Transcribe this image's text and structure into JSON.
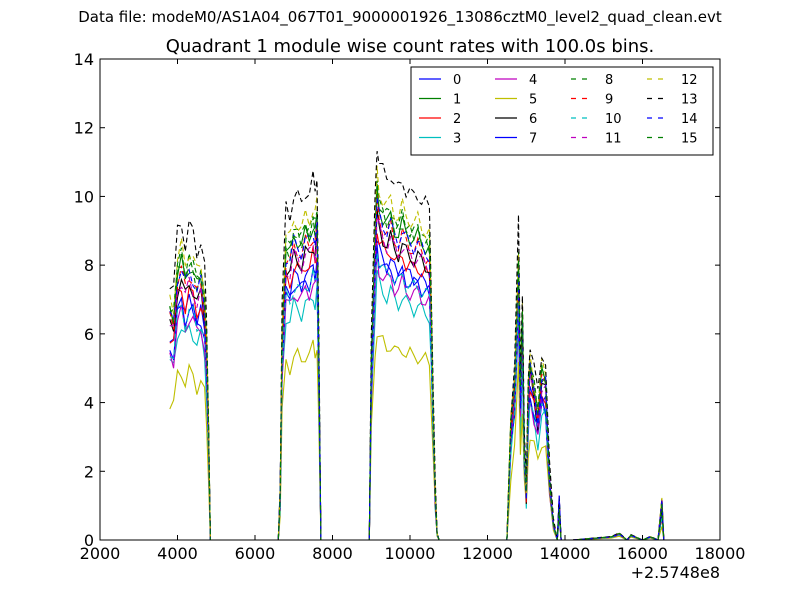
{
  "suptitle": "Data file: modeM0/AS1A04_067T01_9000001926_13086cztM0_level2_quad_clean.evt",
  "chart_data": {
    "type": "line",
    "title": "Quadrant 1 module wise count rates with 100.0s bins.",
    "xlabel": "",
    "ylabel": "",
    "xlim": [
      2000,
      18000
    ],
    "ylim": [
      0,
      14
    ],
    "x_offset_label": "+2.5748e8",
    "xticks": [
      "2000",
      "4000",
      "6000",
      "8000",
      "10000",
      "12000",
      "14000",
      "16000",
      "18000"
    ],
    "yticks": [
      "0",
      "2",
      "4",
      "6",
      "8",
      "10",
      "12",
      "14"
    ],
    "grid": false,
    "legend_position": "top-right",
    "legend_columns": 4,
    "series": [
      {
        "name": "0",
        "color": "#0000ff",
        "dash": "solid",
        "level": 8.0
      },
      {
        "name": "1",
        "color": "#008000",
        "dash": "solid",
        "level": 9.2
      },
      {
        "name": "2",
        "color": "#ff0000",
        "dash": "solid",
        "level": 8.3
      },
      {
        "name": "3",
        "color": "#00bfbf",
        "dash": "solid",
        "level": 7.1
      },
      {
        "name": "4",
        "color": "#bf00bf",
        "dash": "solid",
        "level": 7.5
      },
      {
        "name": "5",
        "color": "#bfbf00",
        "dash": "solid",
        "level": 5.6
      },
      {
        "name": "6",
        "color": "#000000",
        "dash": "solid",
        "level": 8.6
      },
      {
        "name": "7",
        "color": "#0000ff",
        "dash": "solid",
        "level": 7.8
      },
      {
        "name": "8",
        "color": "#008000",
        "dash": "dashed",
        "level": 9.3
      },
      {
        "name": "9",
        "color": "#ff0000",
        "dash": "dashed",
        "level": 8.9
      },
      {
        "name": "10",
        "color": "#00bfbf",
        "dash": "dashed",
        "level": 7.7
      },
      {
        "name": "11",
        "color": "#bf00bf",
        "dash": "dashed",
        "level": 8.6
      },
      {
        "name": "12",
        "color": "#bfbf00",
        "dash": "dashed",
        "level": 9.7
      },
      {
        "name": "13",
        "color": "#000000",
        "dash": "dashed",
        "level": 10.5
      },
      {
        "name": "14",
        "color": "#0000ff",
        "dash": "dashed",
        "level": 9.0
      },
      {
        "name": "15",
        "color": "#008000",
        "dash": "dashed",
        "level": 9.4
      }
    ],
    "profile_x": [
      3800,
      3900,
      4000,
      4100,
      4200,
      4300,
      4400,
      4500,
      4600,
      4700,
      4750,
      4800,
      4850,
      4900,
      6600,
      6650,
      6700,
      6800,
      6900,
      7000,
      7100,
      7200,
      7300,
      7400,
      7500,
      7550,
      7600,
      7650,
      7700,
      7750,
      8950,
      9000,
      9100,
      9150,
      9200,
      9300,
      9400,
      9500,
      9600,
      9700,
      9800,
      9900,
      10000,
      10100,
      10200,
      10300,
      10400,
      10500,
      10550,
      10600,
      10650,
      10700,
      10750,
      12400,
      12500,
      12600,
      12700,
      12800,
      12850,
      12900,
      12950,
      13000,
      13050,
      13100,
      13200,
      13300,
      13400,
      13500,
      13600,
      13700,
      13800,
      13850,
      13900,
      13950,
      14000,
      14100,
      14200,
      15200,
      15400,
      15600,
      15700,
      15800,
      16000,
      16200,
      16400,
      16500,
      16550
    ],
    "profile_y": [
      0.72,
      0.7,
      0.85,
      0.88,
      0.82,
      0.87,
      0.85,
      0.8,
      0.83,
      0.75,
      0.6,
      0.35,
      0.0,
      0.0,
      0.0,
      0.15,
      0.65,
      0.92,
      0.9,
      0.96,
      0.95,
      0.93,
      0.97,
      0.96,
      1.0,
      0.97,
      1.02,
      0.55,
      0.0,
      0.0,
      0.0,
      0.55,
      0.95,
      1.1,
      1.05,
      1.02,
      1.0,
      1.02,
      0.98,
      0.97,
      1.0,
      0.97,
      0.96,
      0.95,
      0.96,
      0.94,
      0.93,
      0.92,
      0.7,
      0.4,
      0.15,
      0.02,
      0.0,
      0.0,
      0.0,
      0.35,
      0.5,
      0.88,
      0.45,
      0.7,
      0.3,
      0.15,
      0.45,
      0.55,
      0.48,
      0.4,
      0.52,
      0.5,
      0.2,
      0.05,
      0.0,
      0.12,
      0.0,
      0.0,
      0.0,
      0.0,
      0.0,
      0.01,
      0.02,
      0.0,
      0.015,
      0.01,
      0.0,
      0.01,
      0.0,
      0.11,
      0.0
    ]
  }
}
